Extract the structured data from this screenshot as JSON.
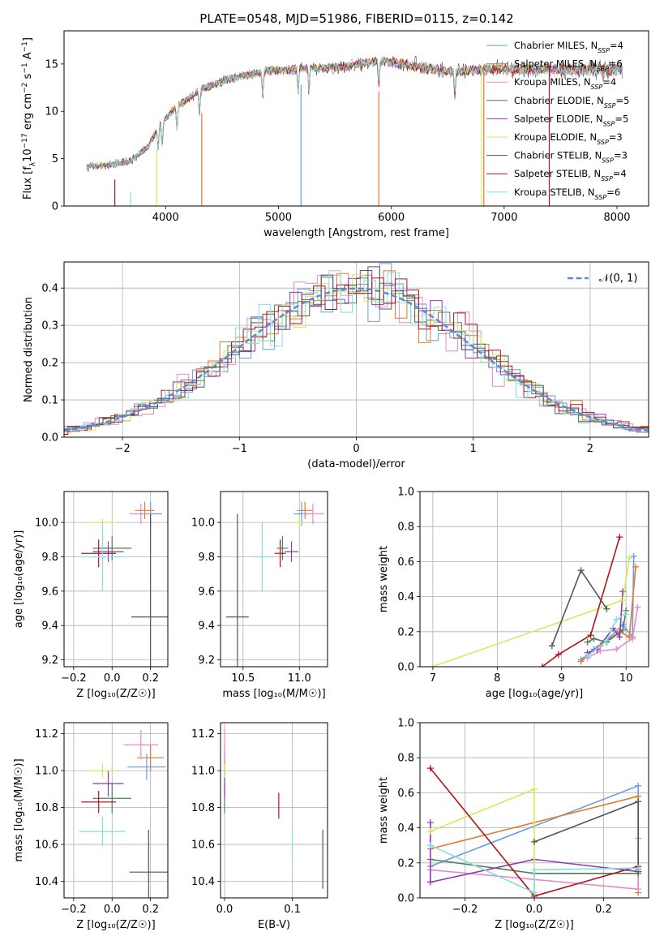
{
  "figure": {
    "title": "PLATE=0548, MJD=51986, FIBERID=0115, z=0.142"
  },
  "colors": {
    "Chabrier MILES": "#6b9ae6",
    "Salpeter MILES": "#e07a2e",
    "Kroupa MILES": "#e58cc8",
    "Chabrier ELODIE": "#4f7f57",
    "Salpeter ELODIE": "#8e3ab0",
    "Kroupa ELODIE": "#d7e85f",
    "Chabrier STELIB": "#555555",
    "Salpeter STELIB": "#b0141c",
    "Kroupa STELIB": "#86dde0"
  },
  "legend_nssp": [
    4,
    6,
    4,
    5,
    5,
    3,
    3,
    4,
    6
  ],
  "chart_data": [
    {
      "id": "spectrum",
      "type": "line",
      "xlabel": "wavelength [Angstrom, rest frame]",
      "ylabel": "Flux [f_λ10^{-17} erg cm^{-2} s^{-1} A^{-1}]",
      "xlim": [
        3100,
        8280
      ],
      "ylim": [
        0,
        18.5
      ],
      "xticks": [
        4000,
        5000,
        6000,
        7000,
        8000
      ],
      "yticks": [
        0,
        5,
        10,
        15
      ],
      "grid": false,
      "legend_position": "right",
      "series": [
        {
          "name": "Chabrier MILES",
          "nssp": 4
        },
        {
          "name": "Salpeter MILES",
          "nssp": 6
        },
        {
          "name": "Kroupa MILES",
          "nssp": 4
        },
        {
          "name": "Chabrier ELODIE",
          "nssp": 5
        },
        {
          "name": "Salpeter ELODIE",
          "nssp": 5
        },
        {
          "name": "Kroupa ELODIE",
          "nssp": 3
        },
        {
          "name": "Chabrier STELIB",
          "nssp": 3
        },
        {
          "name": "Salpeter STELIB",
          "nssp": 4
        },
        {
          "name": "Kroupa STELIB",
          "nssp": 6
        }
      ],
      "continuum": {
        "x": [
          3300,
          3500,
          3700,
          3850,
          3950,
          4100,
          4300,
          4500,
          4700,
          4900,
          5100,
          5300,
          5500,
          5700,
          5900,
          6100,
          6300,
          6500,
          6700,
          6900,
          7100
        ],
        "y": [
          4.2,
          4.3,
          4.8,
          6.4,
          8.6,
          10.5,
          12.2,
          13.2,
          13.8,
          14.3,
          14.4,
          14.6,
          14.6,
          15.0,
          15.3,
          15.0,
          14.6,
          14.2,
          14.3,
          14.5,
          14.4
        ]
      },
      "observed_extent": [
        3300,
        8050
      ]
    },
    {
      "id": "residuals",
      "type": "histogram",
      "xlabel": "(data-model)/error",
      "ylabel": "Normed distribution",
      "xlim": [
        -2.5,
        2.5
      ],
      "ylim": [
        0,
        0.47
      ],
      "xticks": [
        -2,
        -1,
        0,
        1,
        2
      ],
      "yticks": [
        0.0,
        0.1,
        0.2,
        0.3,
        0.4
      ],
      "grid": true,
      "legend_position": "upper right",
      "reference": {
        "name": "𝒩(0, 1)",
        "mean": 0,
        "sigma": 1
      },
      "bin_width": 0.1
    },
    {
      "id": "age-metallicity",
      "type": "scatter",
      "xlabel": "Z [log₁₀(Z/Z☉)]",
      "ylabel": "age  [log₁₀(age/yr)]",
      "xlim": [
        -0.25,
        0.29
      ],
      "ylim": [
        9.16,
        10.18
      ],
      "xticks": [
        -0.2,
        0.0,
        0.2
      ],
      "yticks": [
        9.2,
        9.4,
        9.6,
        9.8,
        10.0
      ],
      "grid": true,
      "points": [
        {
          "series": "Chabrier MILES",
          "x": 0.2,
          "xerr": 0.06,
          "y": 10.05,
          "yerr": 0.07
        },
        {
          "series": "Salpeter MILES",
          "x": 0.17,
          "xerr": 0.05,
          "y": 10.07,
          "yerr": 0.05
        },
        {
          "series": "Kroupa MILES",
          "x": 0.15,
          "xerr": 0.06,
          "y": 10.05,
          "yerr": 0.06
        },
        {
          "series": "Chabrier ELODIE",
          "x": 0.0,
          "xerr": 0.1,
          "y": 9.85,
          "yerr": 0.07
        },
        {
          "series": "Salpeter ELODIE",
          "x": -0.02,
          "xerr": 0.08,
          "y": 9.83,
          "yerr": 0.06
        },
        {
          "series": "Kroupa ELODIE",
          "x": -0.05,
          "xerr": 0.07,
          "y": 10.0,
          "yerr": 0.02
        },
        {
          "series": "Chabrier STELIB",
          "x": 0.2,
          "xerr": 0.1,
          "y": 9.45,
          "yerr": 0.6
        },
        {
          "series": "Salpeter STELIB",
          "x": -0.07,
          "xerr": 0.09,
          "y": 9.82,
          "yerr": 0.08
        },
        {
          "series": "Kroupa STELIB",
          "x": -0.05,
          "xerr": 0.11,
          "y": 9.8,
          "yerr": 0.2
        }
      ]
    },
    {
      "id": "age-mass",
      "type": "scatter",
      "xlabel": "mass [log₁₀(M/M☉)]",
      "ylabel": "",
      "xlim": [
        10.3,
        11.25
      ],
      "ylim": [
        9.16,
        10.18
      ],
      "xticks": [
        10.5,
        11.0
      ],
      "yticks": [
        9.2,
        9.4,
        9.6,
        9.8,
        10.0
      ],
      "grid": true,
      "points": [
        {
          "series": "Chabrier MILES",
          "x": 11.02,
          "xerr": 0.07,
          "y": 10.05,
          "yerr": 0.07
        },
        {
          "series": "Salpeter MILES",
          "x": 11.05,
          "xerr": 0.07,
          "y": 10.07,
          "yerr": 0.05
        },
        {
          "series": "Kroupa MILES",
          "x": 11.12,
          "xerr": 0.1,
          "y": 10.05,
          "yerr": 0.06
        },
        {
          "series": "Chabrier ELODIE",
          "x": 10.85,
          "xerr": 0.05,
          "y": 9.85,
          "yerr": 0.07
        },
        {
          "series": "Salpeter ELODIE",
          "x": 10.93,
          "xerr": 0.06,
          "y": 9.83,
          "yerr": 0.06
        },
        {
          "series": "Kroupa ELODIE",
          "x": 11.0,
          "xerr": 0.04,
          "y": 10.0,
          "yerr": 0.03
        },
        {
          "series": "Chabrier STELIB",
          "x": 10.45,
          "xerr": 0.1,
          "y": 9.45,
          "yerr": 0.6
        },
        {
          "series": "Salpeter STELIB",
          "x": 10.83,
          "xerr": 0.05,
          "y": 9.82,
          "yerr": 0.08
        },
        {
          "series": "Kroupa STELIB",
          "x": 10.67,
          "xerr": 0.09,
          "y": 9.8,
          "yerr": 0.2
        }
      ]
    },
    {
      "id": "sfh-age",
      "type": "line",
      "xlabel": "age  [log₁₀(age/yr)]",
      "ylabel": "mass weight",
      "xlim": [
        6.8,
        10.35
      ],
      "ylim": [
        0,
        1.0
      ],
      "xticks": [
        7,
        8,
        9,
        10
      ],
      "yticks": [
        0.0,
        0.2,
        0.4,
        0.6,
        0.8,
        1.0
      ],
      "grid": true,
      "series": [
        {
          "name": "Chabrier MILES",
          "x": [
            9.3,
            9.5,
            9.7,
            9.95,
            10.1,
            10.12
          ],
          "y": [
            0.04,
            0.1,
            0.15,
            0.24,
            0.17,
            0.63
          ]
        },
        {
          "name": "Salpeter MILES",
          "x": [
            9.3,
            9.6,
            9.9,
            10.05,
            10.15
          ],
          "y": [
            0.03,
            0.12,
            0.2,
            0.17,
            0.57
          ]
        },
        {
          "name": "Kroupa MILES",
          "x": [
            9.4,
            9.6,
            9.85,
            10.1,
            10.18
          ],
          "y": [
            0.05,
            0.09,
            0.1,
            0.16,
            0.34
          ]
        },
        {
          "name": "Chabrier ELODIE",
          "x": [
            9.4,
            9.5,
            9.7,
            9.95,
            10.0
          ],
          "y": [
            0.14,
            0.16,
            0.14,
            0.21,
            0.32
          ]
        },
        {
          "name": "Salpeter ELODIE",
          "x": [
            9.4,
            9.55,
            9.8,
            9.9,
            9.95
          ],
          "y": [
            0.08,
            0.1,
            0.22,
            0.17,
            0.43
          ]
        },
        {
          "name": "Kroupa ELODIE",
          "x": [
            6.99,
            9.95,
            10.05
          ],
          "y": [
            0.0,
            0.38,
            0.62
          ]
        },
        {
          "name": "Chabrier STELIB",
          "x": [
            8.85,
            9.3,
            9.7
          ],
          "y": [
            0.12,
            0.55,
            0.33
          ]
        },
        {
          "name": "Salpeter STELIB",
          "x": [
            8.7,
            8.95,
            9.45,
            9.9
          ],
          "y": [
            0.0,
            0.07,
            0.18,
            0.74
          ]
        },
        {
          "name": "Kroupa STELIB",
          "x": [
            9.4,
            9.7,
            9.85,
            10.0
          ],
          "y": [
            0.06,
            0.15,
            0.27,
            0.3
          ]
        }
      ]
    },
    {
      "id": "mass-metallicity",
      "type": "scatter",
      "xlabel": "Z [log₁₀(Z/Z☉)]",
      "ylabel": "mass [log₁₀(M/M☉)]",
      "xlim": [
        -0.25,
        0.29
      ],
      "ylim": [
        10.31,
        11.26
      ],
      "xticks": [
        -0.2,
        0.0,
        0.2
      ],
      "yticks": [
        10.4,
        10.6,
        10.8,
        11.0,
        11.2
      ],
      "grid": true,
      "points": [
        {
          "series": "Chabrier MILES",
          "x": 0.18,
          "xerr": 0.1,
          "y": 11.02,
          "yerr": 0.07
        },
        {
          "series": "Salpeter MILES",
          "x": 0.2,
          "xerr": 0.07,
          "y": 11.07,
          "yerr": 0.07
        },
        {
          "series": "Kroupa MILES",
          "x": 0.15,
          "xerr": 0.09,
          "y": 11.14,
          "yerr": 0.08
        },
        {
          "series": "Chabrier ELODIE",
          "x": 0.0,
          "xerr": 0.1,
          "y": 10.85,
          "yerr": 0.08
        },
        {
          "series": "Salpeter ELODIE",
          "x": -0.02,
          "xerr": 0.08,
          "y": 10.93,
          "yerr": 0.07
        },
        {
          "series": "Kroupa ELODIE",
          "x": -0.05,
          "xerr": 0.07,
          "y": 11.0,
          "yerr": 0.04
        },
        {
          "series": "Chabrier STELIB",
          "x": 0.19,
          "xerr": 0.1,
          "y": 10.45,
          "yerr": 0.23
        },
        {
          "series": "Salpeter STELIB",
          "x": -0.07,
          "xerr": 0.09,
          "y": 10.83,
          "yerr": 0.06
        },
        {
          "series": "Kroupa STELIB",
          "x": -0.05,
          "xerr": 0.12,
          "y": 10.67,
          "yerr": 0.08
        }
      ]
    },
    {
      "id": "mass-extinction",
      "type": "scatter",
      "xlabel": "E(B-V)",
      "ylabel": "",
      "xlim": [
        -0.006,
        0.152
      ],
      "ylim": [
        10.31,
        11.26
      ],
      "xticks": [
        0.0,
        0.1
      ],
      "yticks": [
        10.4,
        10.6,
        10.8,
        11.0,
        11.2
      ],
      "grid": true,
      "points": [
        {
          "series": "Chabrier MILES",
          "x": 0.0,
          "y": 11.02,
          "yerr": 0.07
        },
        {
          "series": "Salpeter MILES",
          "x": 0.0,
          "y": 11.07,
          "yerr": 0.07
        },
        {
          "series": "Kroupa MILES",
          "x": 0.0,
          "y": 11.14,
          "yerr": 0.09
        },
        {
          "series": "Chabrier ELODIE",
          "x": 0.0,
          "y": 10.85,
          "yerr": 0.08
        },
        {
          "series": "Salpeter ELODIE",
          "x": 0.0,
          "y": 10.93,
          "yerr": 0.07
        },
        {
          "series": "Kroupa ELODIE",
          "x": 0.0,
          "y": 11.0,
          "yerr": 0.04
        },
        {
          "series": "Chabrier STELIB",
          "x": 0.145,
          "y": 10.52,
          "yerr": 0.16
        },
        {
          "series": "Salpeter STELIB",
          "x": 0.08,
          "y": 10.81,
          "yerr": 0.07
        },
        {
          "series": "Kroupa STELIB",
          "x": 0.1,
          "y": 10.6,
          "yerr": 0.06
        }
      ]
    },
    {
      "id": "sfh-metallicity",
      "type": "line",
      "xlabel": "Z [log₁₀(Z/Z☉)]",
      "ylabel": "mass weight",
      "xlim": [
        -0.33,
        0.33
      ],
      "ylim": [
        0,
        1.0
      ],
      "xticks": [
        -0.2,
        0.0,
        0.2
      ],
      "yticks": [
        0.0,
        0.2,
        0.4,
        0.6,
        0.8,
        1.0
      ],
      "grid": true,
      "series": [
        {
          "name": "Chabrier MILES",
          "x": [
            -0.3,
            0.3,
            0.3
          ],
          "y": [
            0.18,
            0.64,
            0.16
          ]
        },
        {
          "name": "Salpeter MILES",
          "x": [
            -0.3,
            0.3,
            0.3
          ],
          "y": [
            0.28,
            0.58,
            0.03
          ]
        },
        {
          "name": "Kroupa MILES",
          "x": [
            -0.3,
            0.3,
            0.3
          ],
          "y": [
            0.16,
            0.05,
            0.34
          ]
        },
        {
          "name": "Chabrier ELODIE",
          "x": [
            -0.3,
            0.0,
            0.3
          ],
          "y": [
            0.22,
            0.14,
            0.14
          ]
        },
        {
          "name": "Salpeter ELODIE",
          "x": [
            -0.3,
            -0.3,
            0.0,
            0.3
          ],
          "y": [
            0.43,
            0.09,
            0.22,
            0.15
          ]
        },
        {
          "name": "Kroupa ELODIE",
          "x": [
            -0.3,
            0.0,
            0.0
          ],
          "y": [
            0.38,
            0.62,
            0.02
          ]
        },
        {
          "name": "Chabrier STELIB",
          "x": [
            0.0,
            0.3,
            0.3
          ],
          "y": [
            0.32,
            0.55,
            0.15
          ]
        },
        {
          "name": "Salpeter STELIB",
          "x": [
            -0.3,
            0.0,
            0.3
          ],
          "y": [
            0.74,
            0.01,
            0.18
          ]
        },
        {
          "name": "Kroupa STELIB",
          "x": [
            -0.3,
            0.0,
            0.0,
            0.3
          ],
          "y": [
            0.3,
            0.03,
            0.16,
            0.17
          ]
        }
      ]
    }
  ]
}
